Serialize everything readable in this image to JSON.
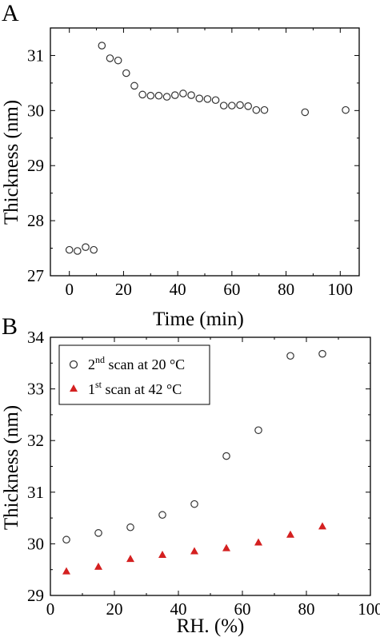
{
  "chart_data": [
    {
      "panel": "A",
      "type": "scatter",
      "xlabel": "Time (min)",
      "ylabel": "Thickness (nm)",
      "xlim": [
        -7,
        107
      ],
      "ylim": [
        27,
        31.5
      ],
      "xticks": [
        0,
        20,
        40,
        60,
        80,
        100
      ],
      "yticks": [
        27,
        28,
        29,
        30,
        31
      ],
      "grid": false,
      "series": [
        {
          "marker": "open-circle",
          "color": "#333333",
          "x": [
            0,
            3,
            6,
            9,
            12,
            15,
            18,
            21,
            24,
            27,
            30,
            33,
            36,
            39,
            42,
            45,
            48,
            51,
            54,
            57,
            60,
            63,
            66,
            69,
            72,
            87,
            102
          ],
          "y": [
            27.47,
            27.45,
            27.52,
            27.47,
            31.18,
            30.95,
            30.91,
            30.68,
            30.45,
            30.29,
            30.27,
            30.27,
            30.25,
            30.28,
            30.31,
            30.28,
            30.22,
            30.21,
            30.19,
            30.09,
            30.09,
            30.1,
            30.08,
            30.01,
            30.01,
            29.97,
            30.01
          ]
        }
      ]
    },
    {
      "panel": "B",
      "type": "scatter",
      "xlabel": "RH. (%)",
      "ylabel": "Thickness (nm)",
      "xlim": [
        0,
        100
      ],
      "ylim": [
        29,
        34
      ],
      "xticks": [
        0,
        20,
        40,
        60,
        80,
        100
      ],
      "yticks": [
        29,
        30,
        31,
        32,
        33,
        34
      ],
      "grid": false,
      "legend": "top-left",
      "series": [
        {
          "name_base": "2",
          "name_sup": "nd",
          "name_rest": " scan at 20 °C",
          "marker": "open-circle",
          "color": "#333333",
          "x": [
            5,
            15,
            25,
            35,
            45,
            55,
            65,
            75,
            85
          ],
          "y": [
            30.08,
            30.21,
            30.32,
            30.56,
            30.77,
            31.7,
            32.2,
            33.64,
            33.68
          ]
        },
        {
          "name_base": "1",
          "name_sup": "st",
          "name_rest": " scan at 42 °C",
          "marker": "filled-triangle",
          "color": "#d42020",
          "x": [
            5,
            15,
            25,
            35,
            45,
            55,
            65,
            75,
            85
          ],
          "y": [
            29.47,
            29.56,
            29.71,
            29.79,
            29.86,
            29.92,
            30.03,
            30.18,
            30.34
          ]
        }
      ]
    }
  ]
}
